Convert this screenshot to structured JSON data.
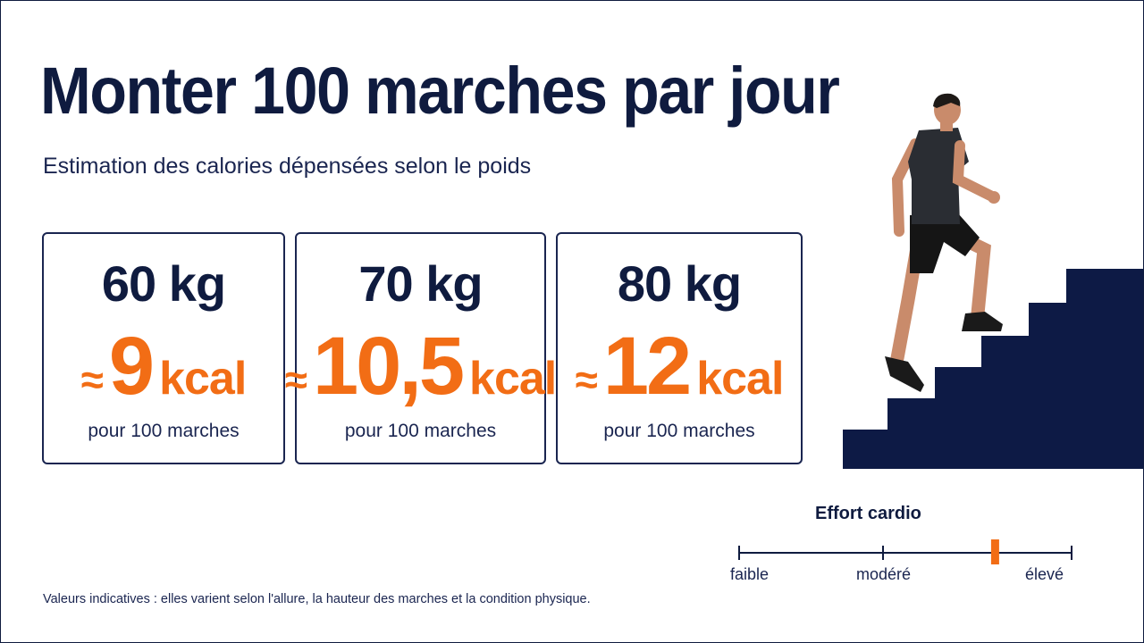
{
  "title": "Monter 100 marches par jour",
  "subtitle": "Estimation des calories dépensées selon le poids",
  "cards": [
    {
      "weight": "60 kg",
      "approx": "≈",
      "kcal": "9",
      "unit": "kcal",
      "caption": "pour 100 marches"
    },
    {
      "weight": "70 kg",
      "approx": "≈",
      "kcal": "10,5",
      "unit": "kcal",
      "caption": "pour 100 marches"
    },
    {
      "weight": "80 kg",
      "approx": "≈",
      "kcal": "12",
      "unit": "kcal",
      "caption": "pour 100 marches"
    }
  ],
  "effort": {
    "label": "Effort cardio",
    "scale": [
      "faible",
      "modéré",
      "élevé"
    ],
    "level": 0.77
  },
  "footnote": "Valeurs indicatives : elles varient selon l'allure, la hauteur des marches et la condition physique.",
  "colors": {
    "navy": "#0f1b3f",
    "accent": "#f26d15",
    "stairs": "#0d1a45"
  }
}
